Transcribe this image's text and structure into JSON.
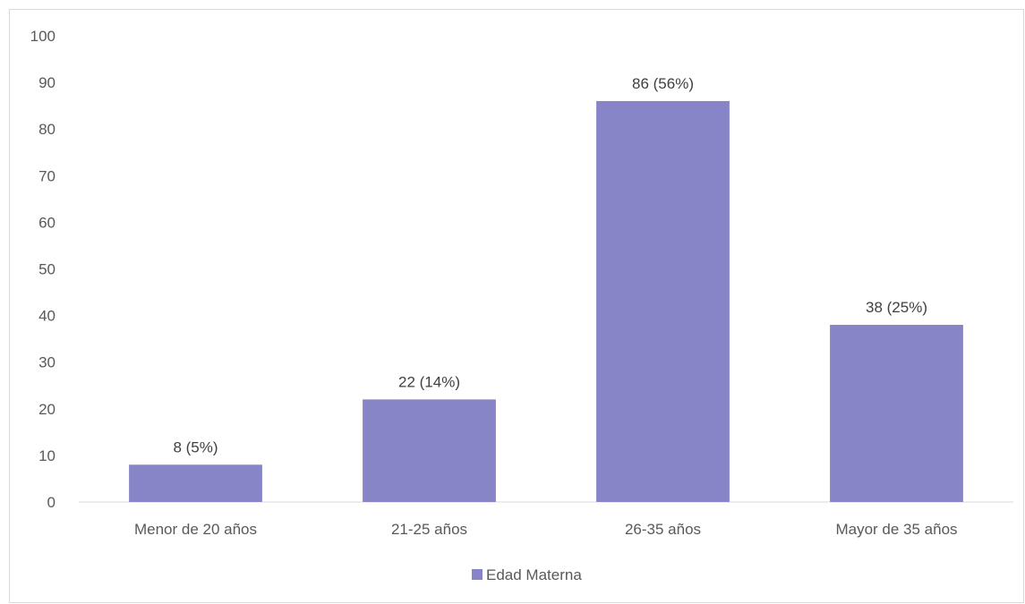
{
  "chart_data": {
    "type": "bar",
    "categories": [
      "Menor de 20 años",
      "21-25 años",
      "26-35 años",
      "Mayor de 35 años"
    ],
    "series": [
      {
        "name": "Edad Materna",
        "values": [
          8,
          22,
          86,
          38
        ],
        "data_labels": [
          "8 (5%)",
          "22 (14%)",
          "86 (56%)",
          "38 (25%)"
        ]
      }
    ],
    "yticks": [
      "0",
      "10",
      "20",
      "30",
      "40",
      "50",
      "60",
      "70",
      "80",
      "90",
      "100"
    ],
    "ylim": [
      0,
      100
    ],
    "grid": false,
    "legend_position": "bottom",
    "colors": {
      "bar": "#8784c7",
      "axis": "#d9d9d9",
      "frame": "#d9d9d9"
    }
  }
}
